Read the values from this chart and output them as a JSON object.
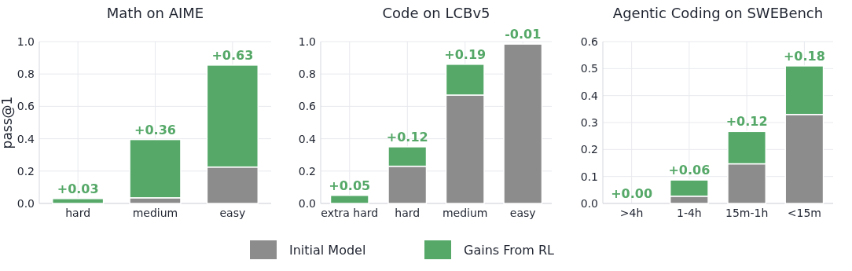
{
  "chart_data": [
    {
      "type": "bar",
      "title": "Math on AIME",
      "ylabel": "pass@1",
      "categories": [
        "hard",
        "medium",
        "easy"
      ],
      "stacked": true,
      "ylim": [
        0,
        1.0
      ],
      "yticks": [
        {
          "value": 0,
          "label": "0.0"
        },
        {
          "value": 0.2,
          "label": "0.2"
        },
        {
          "value": 0.4,
          "label": "0.4"
        },
        {
          "value": 0.6,
          "label": "0.6"
        },
        {
          "value": 0.8,
          "label": "0.8"
        },
        {
          "value": 1.0,
          "label": "1.0"
        }
      ],
      "grid": true,
      "legend": "bottom",
      "series": [
        {
          "name": "Initial Model",
          "color": "#8c8c8c",
          "values": [
            0,
            0.035,
            0.225
          ]
        },
        {
          "name": "Gains From RL",
          "color": "#55a868",
          "values": [
            0.03,
            0.36,
            0.63
          ],
          "value_labels": [
            "+0.03",
            "+0.36",
            "+0.63"
          ]
        }
      ]
    },
    {
      "type": "bar",
      "title": "Code on LCBv5",
      "categories": [
        "extra hard",
        "hard",
        "medium",
        "easy"
      ],
      "stacked": true,
      "ylim": [
        0,
        1.0
      ],
      "yticks": [
        {
          "value": 0,
          "label": "0.0"
        },
        {
          "value": 0.2,
          "label": "0.2"
        },
        {
          "value": 0.4,
          "label": "0.4"
        },
        {
          "value": 0.6,
          "label": "0.6"
        },
        {
          "value": 0.8,
          "label": "0.8"
        },
        {
          "value": 1.0,
          "label": "1.0"
        }
      ],
      "grid": true,
      "series": [
        {
          "color": "#8c8c8c",
          "values": [
            0,
            0.23,
            0.67,
            0.985
          ]
        },
        {
          "color": "#55a868",
          "values": [
            0.05,
            0.12,
            0.19,
            null
          ],
          "value_labels": [
            "+0.05",
            "+0.12",
            "+0.19",
            null
          ]
        }
      ],
      "annotations": [
        {
          "text": "-0.01",
          "x": "easy",
          "y": 0.985
        }
      ]
    },
    {
      "type": "bar",
      "title": "Agentic Coding on SWEBench",
      "categories": [
        ">4h",
        "1-4h",
        "15m-1h",
        "<15m"
      ],
      "stacked": true,
      "ylim": [
        0,
        0.6
      ],
      "yticks": [
        {
          "value": 0,
          "label": "0.0"
        },
        {
          "value": 0.1,
          "label": "0.1"
        },
        {
          "value": 0.2,
          "label": "0.2"
        },
        {
          "value": 0.3,
          "label": "0.3"
        },
        {
          "value": 0.4,
          "label": "0.4"
        },
        {
          "value": 0.5,
          "label": "0.5"
        },
        {
          "value": 0.6,
          "label": "0.6"
        }
      ],
      "grid": true,
      "series": [
        {
          "color": "#8c8c8c",
          "values": [
            0,
            0.027,
            0.147,
            0.33
          ]
        },
        {
          "color": "#55a868",
          "values": [
            0.0,
            0.06,
            0.12,
            0.18
          ],
          "value_labels": [
            "+0.00",
            "+0.06",
            "+0.12",
            "+0.18"
          ]
        }
      ]
    }
  ]
}
